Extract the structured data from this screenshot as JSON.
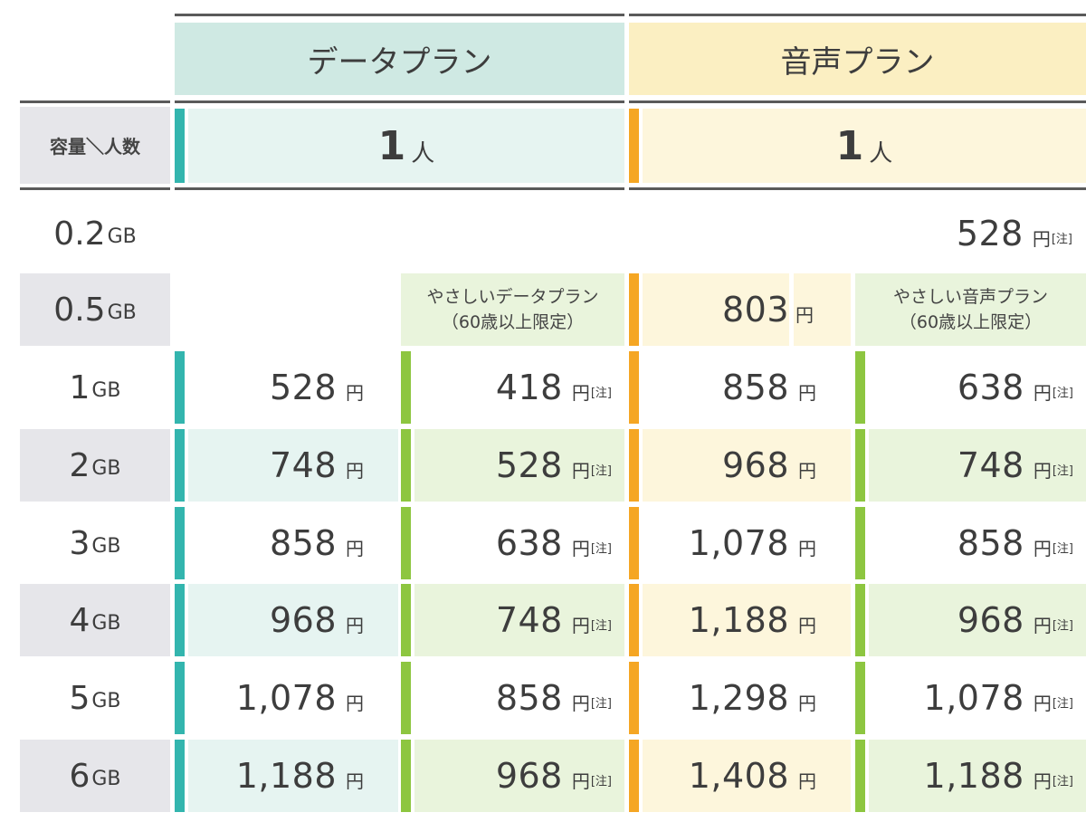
{
  "header": {
    "data_plan": "データプラン",
    "voice_plan": "音声プラン",
    "row_label": "容量＼人数",
    "people_num": "1",
    "people_unit": "人"
  },
  "yen": "円",
  "note": "[注]",
  "plan_notes": {
    "gentle_data_line1": "やさしいデータプラン",
    "gentle_data_line2": "（60歳以上限定）",
    "gentle_voice_line1": "やさしい音声プラン",
    "gentle_voice_line2": "（60歳以上限定）"
  },
  "rows": [
    {
      "cap": "0.2",
      "unit": "GB",
      "data": "",
      "gentle_data": "",
      "voice": "",
      "gentle_voice": "528"
    },
    {
      "cap": "0.5",
      "unit": "GB",
      "data": "",
      "gentle_data": "",
      "voice": "803",
      "gentle_voice": ""
    },
    {
      "cap": "1",
      "unit": "GB",
      "data": "528",
      "gentle_data": "418",
      "voice": "858",
      "gentle_voice": "638"
    },
    {
      "cap": "2",
      "unit": "GB",
      "data": "748",
      "gentle_data": "528",
      "voice": "968",
      "gentle_voice": "748"
    },
    {
      "cap": "3",
      "unit": "GB",
      "data": "858",
      "gentle_data": "638",
      "voice": "1,078",
      "gentle_voice": "858"
    },
    {
      "cap": "4",
      "unit": "GB",
      "data": "968",
      "gentle_data": "748",
      "voice": "1,188",
      "gentle_voice": "968"
    },
    {
      "cap": "5",
      "unit": "GB",
      "data": "1,078",
      "gentle_data": "858",
      "voice": "1,298",
      "gentle_voice": "1,078"
    },
    {
      "cap": "6",
      "unit": "GB",
      "data": "1,188",
      "gentle_data": "968",
      "voice": "1,408",
      "gentle_voice": "1,188"
    }
  ]
}
